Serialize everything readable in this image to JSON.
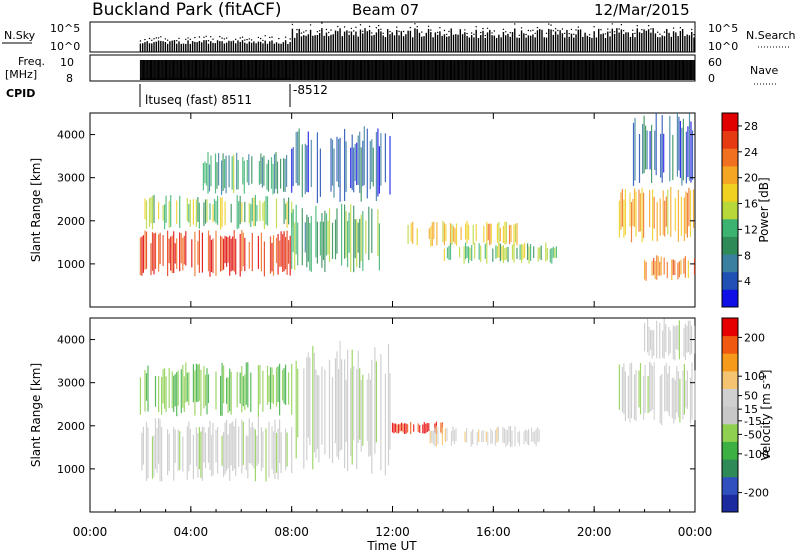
{
  "header": {
    "station": "Buckland Park (fitACF)",
    "beam": "Beam 07",
    "date": "12/Mar/2015"
  },
  "nsky_panel": {
    "left_label": "N.Sky",
    "left_ticks": [
      "10^5",
      "10^0"
    ],
    "right_ticks": [
      "10^5",
      "10^0"
    ],
    "right_label": "N.Search"
  },
  "freq_panel": {
    "left_label_1": "Freq.",
    "left_label_2": "[MHz]",
    "left_ticks": [
      "10",
      "8"
    ],
    "right_ticks": [
      "60",
      "0"
    ],
    "right_label": "Nave"
  },
  "cpid": {
    "label": "CPID",
    "mode_1": "ltuseq (fast) 8511",
    "mode_2": "-8512"
  },
  "colors": {
    "power_scale": [
      "#1010e6",
      "#2050b4",
      "#3b7fa0",
      "#2e8b57",
      "#3cb371",
      "#b8d83a",
      "#f0d020",
      "#f5a623",
      "#f07020",
      "#e63b12",
      "#e00000"
    ],
    "velocity_scale": [
      "#e60000",
      "#f05a10",
      "#f59a1a",
      "#f5c470",
      "#d0d0d0",
      "#c8c8c8",
      "#8fd050",
      "#3cb043",
      "#2e8b57",
      "#3050c0",
      "#1b2a9e"
    ]
  },
  "chart_data": [
    {
      "type": "heatmap",
      "name": "power",
      "xlabel": "",
      "ylabel": "Slant Range [km]",
      "xlim": [
        "00:00",
        "24:00"
      ],
      "ylim": [
        0,
        4500
      ],
      "yticks": [
        1000,
        2000,
        3000,
        4000
      ],
      "colorbar_label": "Power [dB]",
      "colorbar_ticks": [
        4,
        8,
        12,
        16,
        20,
        24,
        28
      ],
      "colorbar_range": [
        0,
        30
      ],
      "echo_regions": [
        {
          "t_start": 2.0,
          "t_end": 8.0,
          "r_start": 700,
          "r_end": 1800,
          "level": 26
        },
        {
          "t_start": 2.0,
          "t_end": 8.0,
          "r_start": 1800,
          "r_end": 2600,
          "level": 14
        },
        {
          "t_start": 4.5,
          "t_end": 8.0,
          "r_start": 2600,
          "r_end": 3600,
          "level": 10
        },
        {
          "t_start": 8.0,
          "t_end": 11.5,
          "r_start": 800,
          "r_end": 2400,
          "level": 12
        },
        {
          "t_start": 8.0,
          "t_end": 12.0,
          "r_start": 2400,
          "r_end": 4200,
          "level": 6
        },
        {
          "t_start": 12.5,
          "t_end": 17.0,
          "r_start": 1400,
          "r_end": 2000,
          "level": 18
        },
        {
          "t_start": 14.0,
          "t_end": 18.5,
          "r_start": 1000,
          "r_end": 1500,
          "level": 14
        },
        {
          "t_start": 21.0,
          "t_end": 24.0,
          "r_start": 1500,
          "r_end": 2800,
          "level": 20
        },
        {
          "t_start": 21.5,
          "t_end": 24.0,
          "r_start": 2800,
          "r_end": 4500,
          "level": 6
        },
        {
          "t_start": 22.0,
          "t_end": 24.0,
          "r_start": 600,
          "r_end": 1200,
          "level": 22
        }
      ]
    },
    {
      "type": "heatmap",
      "name": "velocity",
      "xlabel": "Time UT",
      "ylabel": "Slant Range [km]",
      "xlim": [
        "00:00",
        "24:00"
      ],
      "ylim": [
        0,
        4500
      ],
      "xticks": [
        "00:00",
        "04:00",
        "08:00",
        "12:00",
        "16:00",
        "20:00",
        "00:00"
      ],
      "yticks": [
        1000,
        2000,
        3000,
        4000
      ],
      "colorbar_label": "Velocity [m s-1]",
      "colorbar_ticks": [
        200,
        100,
        50,
        15,
        -15,
        -50,
        -100,
        -200
      ],
      "colorbar_range": [
        -250,
        250
      ],
      "echo_regions": [
        {
          "t_start": 2.0,
          "t_end": 8.0,
          "r_start": 700,
          "r_end": 2200,
          "level": 0
        },
        {
          "t_start": 2.0,
          "t_end": 8.0,
          "r_start": 2200,
          "r_end": 3500,
          "level": -60
        },
        {
          "t_start": 8.0,
          "t_end": 12.0,
          "r_start": 800,
          "r_end": 4000,
          "level": 0
        },
        {
          "t_start": 12.0,
          "t_end": 14.0,
          "r_start": 1800,
          "r_end": 2100,
          "level": 220
        },
        {
          "t_start": 13.5,
          "t_end": 18.0,
          "r_start": 1500,
          "r_end": 2000,
          "level": 50
        },
        {
          "t_start": 21.0,
          "t_end": 24.0,
          "r_start": 2000,
          "r_end": 3500,
          "level": 0
        },
        {
          "t_start": 22.0,
          "t_end": 24.0,
          "r_start": 3500,
          "r_end": 4500,
          "level": 0
        }
      ]
    }
  ]
}
